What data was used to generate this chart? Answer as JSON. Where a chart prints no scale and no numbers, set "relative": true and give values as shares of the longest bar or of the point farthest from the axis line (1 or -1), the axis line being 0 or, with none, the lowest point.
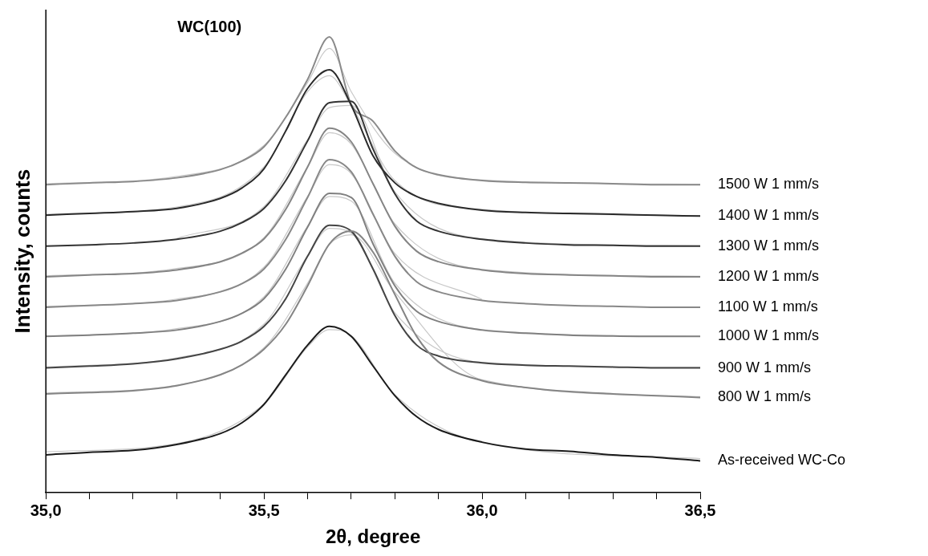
{
  "chart_data": {
    "type": "line",
    "relative": true,
    "xlabel": "2θ, degree",
    "ylabel": "Intensity, counts",
    "annotations": [
      "WC(100)"
    ],
    "x": [
      35.0,
      35.1,
      35.2,
      35.3,
      35.4,
      35.45,
      35.5,
      35.55,
      35.6,
      35.65,
      35.7,
      35.75,
      35.8,
      35.85,
      35.9,
      36.0,
      36.1,
      36.2,
      36.3,
      36.4,
      36.5
    ],
    "xlim": [
      35.0,
      36.5
    ],
    "xticks": [
      {
        "value": 35.0,
        "label": "35,0"
      },
      {
        "value": 35.1,
        "label": null
      },
      {
        "value": 35.2,
        "label": null
      },
      {
        "value": 35.3,
        "label": null
      },
      {
        "value": 35.4,
        "label": null
      },
      {
        "value": 35.5,
        "label": "35,5"
      },
      {
        "value": 35.6,
        "label": null
      },
      {
        "value": 35.7,
        "label": null
      },
      {
        "value": 35.8,
        "label": null
      },
      {
        "value": 35.9,
        "label": null
      },
      {
        "value": 36.0,
        "label": "36,0"
      },
      {
        "value": 36.1,
        "label": null
      },
      {
        "value": 36.2,
        "label": null
      },
      {
        "value": 36.3,
        "label": null
      },
      {
        "value": 36.4,
        "label": null
      },
      {
        "value": 36.5,
        "label": "36,5"
      }
    ],
    "grid": false,
    "legend": false,
    "marker": "none",
    "line_style": "solid",
    "series": [
      {
        "name": "As-received WC-Co",
        "color": "#1a1a1a",
        "values": [
          0.083,
          0.089,
          0.093,
          0.106,
          0.13,
          0.154,
          0.194,
          0.259,
          0.324,
          0.365,
          0.343,
          0.278,
          0.213,
          0.167,
          0.139,
          0.111,
          0.096,
          0.091,
          0.083,
          0.078,
          0.07
        ]
      },
      {
        "name": "800 W 1 mm/s",
        "color": "#858585",
        "values": [
          0.217,
          0.22,
          0.224,
          0.235,
          0.259,
          0.281,
          0.315,
          0.37,
          0.454,
          0.546,
          0.574,
          0.528,
          0.435,
          0.343,
          0.287,
          0.246,
          0.231,
          0.222,
          0.217,
          0.213,
          0.209
        ]
      },
      {
        "name": "900 W 1 mm/s",
        "color": "#444444",
        "values": [
          0.274,
          0.278,
          0.283,
          0.294,
          0.315,
          0.333,
          0.365,
          0.426,
          0.519,
          0.587,
          0.574,
          0.491,
          0.389,
          0.324,
          0.3,
          0.285,
          0.28,
          0.278,
          0.276,
          0.274,
          0.274
        ]
      },
      {
        "name": "1000 W 1 mm/s",
        "color": "#808080",
        "values": [
          0.343,
          0.346,
          0.35,
          0.357,
          0.376,
          0.394,
          0.426,
          0.491,
          0.583,
          0.657,
          0.648,
          0.546,
          0.454,
          0.398,
          0.376,
          0.357,
          0.35,
          0.346,
          0.344,
          0.343,
          0.343
        ]
      },
      {
        "name": "1100 W 1 mm/s",
        "color": "#888888",
        "values": [
          0.407,
          0.411,
          0.415,
          0.422,
          0.441,
          0.459,
          0.491,
          0.556,
          0.648,
          0.731,
          0.704,
          0.611,
          0.519,
          0.463,
          0.441,
          0.422,
          0.415,
          0.411,
          0.409,
          0.407,
          0.407
        ]
      },
      {
        "name": "1200 W 1 mm/s",
        "color": "#858585",
        "values": [
          0.474,
          0.478,
          0.481,
          0.489,
          0.507,
          0.526,
          0.557,
          0.622,
          0.715,
          0.8,
          0.77,
          0.678,
          0.585,
          0.53,
          0.507,
          0.489,
          0.481,
          0.478,
          0.476,
          0.474,
          0.474
        ]
      },
      {
        "name": "1300 W 1 mm/s",
        "color": "#333333",
        "values": [
          0.541,
          0.544,
          0.548,
          0.556,
          0.574,
          0.593,
          0.624,
          0.685,
          0.772,
          0.856,
          0.859,
          0.754,
          0.656,
          0.596,
          0.574,
          0.556,
          0.548,
          0.544,
          0.543,
          0.541,
          0.541
        ]
      },
      {
        "name": "1400 W 1 mm/s",
        "color": "#2a2a2a",
        "values": [
          0.609,
          0.613,
          0.617,
          0.624,
          0.646,
          0.669,
          0.711,
          0.794,
          0.887,
          0.928,
          0.85,
          0.739,
          0.68,
          0.65,
          0.635,
          0.62,
          0.615,
          0.613,
          0.611,
          0.609,
          0.607
        ]
      },
      {
        "name": "1500 W 1 mm/s",
        "color": "#8a8a8a",
        "values": [
          0.676,
          0.68,
          0.683,
          0.691,
          0.709,
          0.728,
          0.759,
          0.824,
          0.907,
          1,
          0.852,
          0.815,
          0.75,
          0.713,
          0.698,
          0.685,
          0.681,
          0.68,
          0.678,
          0.676,
          0.676
        ]
      },
      {
        "color": "#c8c8c8",
        "x": [
          35.0,
          35.3,
          35.5,
          35.6,
          35.65,
          35.7,
          35.8,
          36.0,
          36.5
        ],
        "values": [
          0.09,
          0.108,
          0.195,
          0.32,
          0.358,
          0.345,
          0.215,
          0.11,
          0.075
        ]
      },
      {
        "color": "#c8c8c8",
        "x": [
          35.0,
          35.3,
          35.5,
          35.6,
          35.65,
          35.7,
          35.8,
          36.0,
          36.5
        ],
        "values": [
          0.219,
          0.236,
          0.318,
          0.46,
          0.545,
          0.566,
          0.44,
          0.248,
          0.211
        ]
      },
      {
        "color": "#c8c8c8",
        "x": [
          35.0,
          35.3,
          35.5,
          35.6,
          35.65,
          35.7,
          35.8,
          36.0,
          36.5
        ],
        "values": [
          0.276,
          0.296,
          0.37,
          0.52,
          0.58,
          0.57,
          0.395,
          0.286,
          0.275
        ]
      },
      {
        "color": "#c8c8c8",
        "x": [
          35.0,
          35.3,
          35.5,
          35.6,
          35.65,
          35.7,
          35.8,
          36.0,
          36.5
        ],
        "values": [
          0.344,
          0.36,
          0.43,
          0.585,
          0.65,
          0.64,
          0.46,
          0.358,
          0.343
        ]
      },
      {
        "color": "#c8c8c8",
        "x": [
          35.0,
          35.3,
          35.5,
          35.6,
          35.65,
          35.7,
          35.8,
          36.0
        ],
        "values": [
          0.409,
          0.425,
          0.495,
          0.65,
          0.72,
          0.7,
          0.525,
          0.424
        ]
      },
      {
        "color": "#c8c8c8",
        "x": [
          35.0,
          35.3,
          35.5,
          35.6,
          35.65,
          35.7,
          35.8,
          36.0,
          36.5
        ],
        "values": [
          0.476,
          0.492,
          0.56,
          0.715,
          0.79,
          0.765,
          0.59,
          0.49,
          0.475
        ]
      },
      {
        "color": "#c8c8c8",
        "x": [
          35.3,
          35.5,
          35.6,
          35.65,
          35.7,
          35.8,
          36.0,
          36.5
        ],
        "values": [
          0.558,
          0.628,
          0.775,
          0.845,
          0.85,
          0.66,
          0.557,
          0.542
        ]
      },
      {
        "color": "#c8c8c8",
        "x": [
          35.0,
          35.3,
          35.5,
          35.6,
          35.65,
          35.7,
          35.8,
          36.0,
          36.5
        ],
        "values": [
          0.611,
          0.627,
          0.715,
          0.88,
          0.915,
          0.85,
          0.685,
          0.622,
          0.608
        ]
      },
      {
        "color": "#c8c8c8",
        "x": [
          35.0,
          35.3,
          35.5,
          35.6,
          35.65,
          35.7,
          35.8,
          36.0,
          36.5
        ],
        "values": [
          0.678,
          0.694,
          0.762,
          0.9,
          0.975,
          0.88,
          0.745,
          0.686,
          0.677
        ]
      }
    ]
  }
}
